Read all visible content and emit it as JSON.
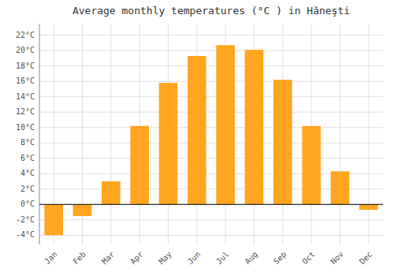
{
  "chart_data": {
    "type": "bar",
    "title": "Average monthly temperatures (°C ) in Hăneşti",
    "categories": [
      "Jan",
      "Feb",
      "Mar",
      "Apr",
      "May",
      "Jun",
      "Jul",
      "Aug",
      "Sep",
      "Oct",
      "Nov",
      "Dec"
    ],
    "values": [
      -4.0,
      -1.5,
      3.0,
      10.2,
      15.8,
      19.3,
      20.7,
      20.1,
      16.2,
      10.2,
      4.3,
      -0.7
    ],
    "color": "#FFA520",
    "ylim": [
      -5.2,
      23.5
    ],
    "yticks": [
      {
        "value": -4,
        "label": "-4°C"
      },
      {
        "value": -2,
        "label": "-2°C"
      },
      {
        "value": 0,
        "label": "0°C"
      },
      {
        "value": 2,
        "label": "2°C"
      },
      {
        "value": 4,
        "label": "4°C"
      },
      {
        "value": 6,
        "label": "6°C"
      },
      {
        "value": 8,
        "label": "8°C"
      },
      {
        "value": 10,
        "label": "10°C"
      },
      {
        "value": 12,
        "label": "12°C"
      },
      {
        "value": 14,
        "label": "14°C"
      },
      {
        "value": 16,
        "label": "16°C"
      },
      {
        "value": 18,
        "label": "18°C"
      },
      {
        "value": 20,
        "label": "20°C"
      },
      {
        "value": 22,
        "label": "22°C"
      }
    ],
    "grid": true
  }
}
